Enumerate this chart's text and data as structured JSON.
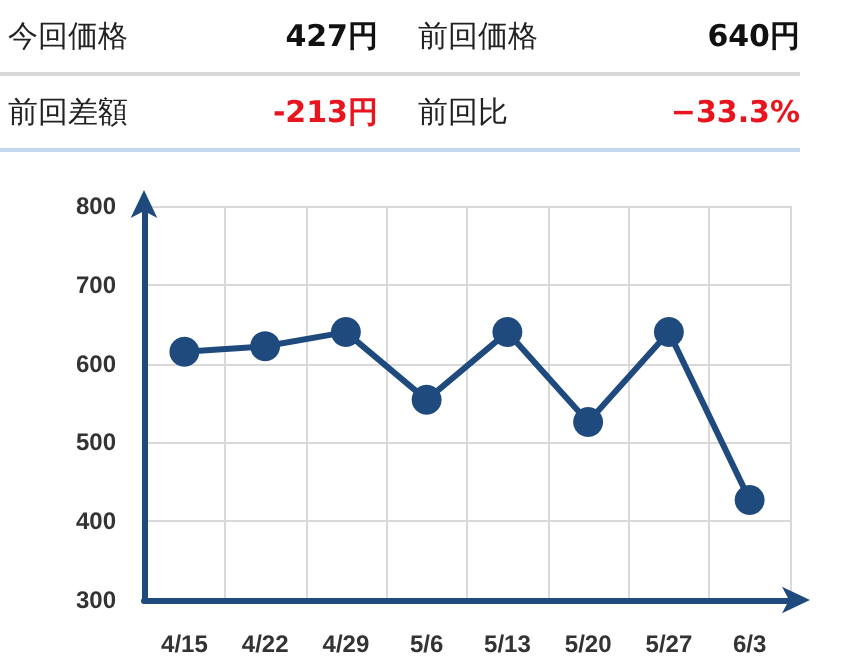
{
  "chart_data": {
    "type": "line",
    "annotations": [
      "今回価格",
      "427円",
      "前回価格",
      "640円",
      "前回差額",
      "-213円",
      "前回比",
      "−33.3%"
    ],
    "categories": [
      "4/15",
      "4/22",
      "4/29",
      "5/6",
      "5/13",
      "5/20",
      "5/27",
      "6/3"
    ],
    "series": [
      {
        "color": "#1f4a7e",
        "values": [
          615,
          622,
          640,
          554,
          640,
          526,
          640,
          427
        ]
      }
    ],
    "ylim": [
      300,
      800
    ],
    "yticks": [
      300,
      400,
      500,
      600,
      700,
      800
    ],
    "grid": true,
    "marker": "circle",
    "line_style": "solid"
  }
}
